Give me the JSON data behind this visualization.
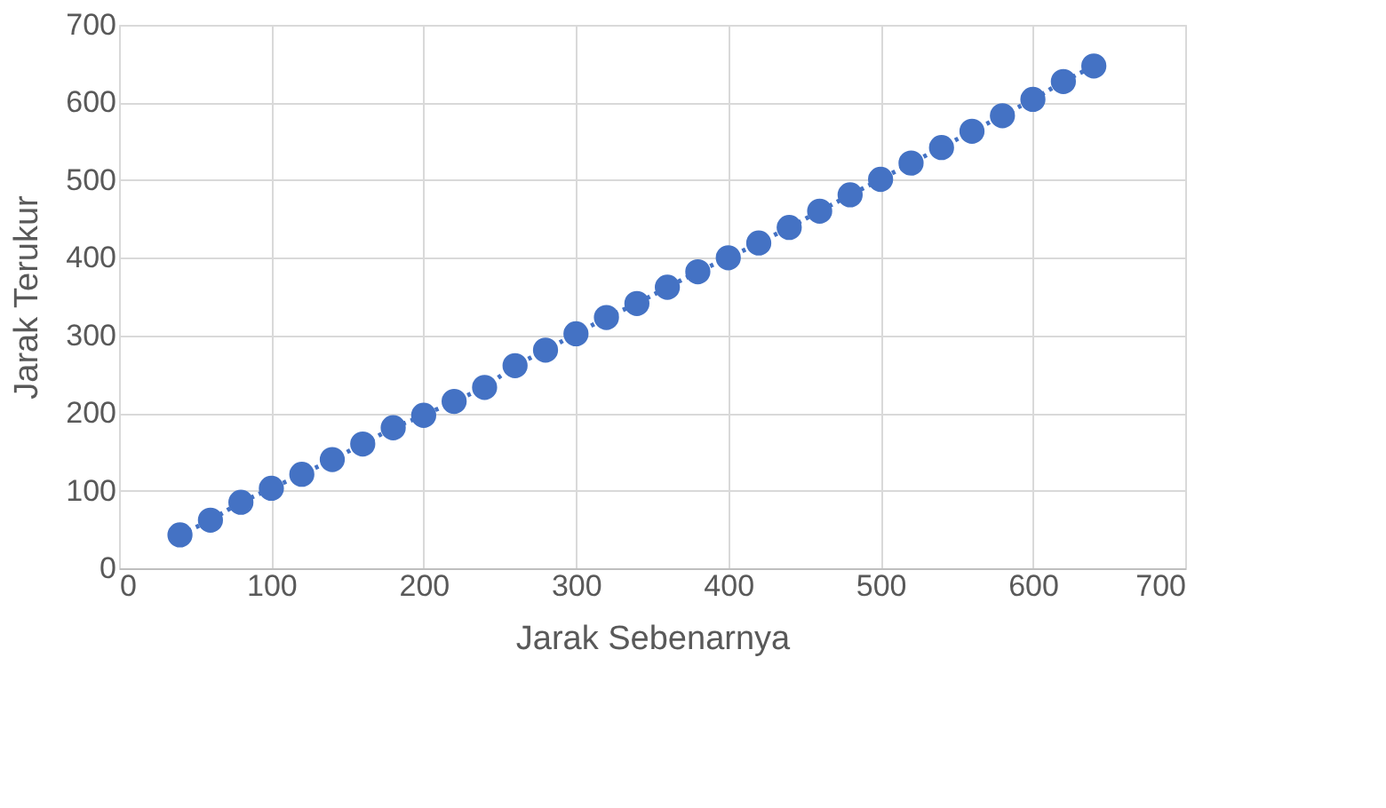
{
  "chart_data": {
    "type": "line",
    "xlabel": "Jarak Sebenarnya",
    "ylabel": "Jarak Terukur",
    "x": [
      40,
      60,
      80,
      100,
      120,
      140,
      160,
      180,
      200,
      220,
      240,
      260,
      280,
      300,
      320,
      340,
      360,
      380,
      400,
      420,
      440,
      460,
      480,
      500,
      520,
      540,
      560,
      580,
      600,
      620,
      640
    ],
    "series": [
      {
        "color": "#4472c4",
        "values": [
          43,
          62,
          85,
          103,
          121,
          140,
          160,
          181,
          197,
          215,
          233,
          261,
          281,
          302,
          323,
          341,
          362,
          382,
          400,
          419,
          439,
          460,
          481,
          501,
          522,
          542,
          563,
          583,
          604,
          627,
          647
        ]
      }
    ],
    "xlim": [
      0,
      700
    ],
    "xticks": [
      0,
      100,
      200,
      300,
      400,
      500,
      600,
      700
    ],
    "ylim": [
      0,
      700
    ],
    "yticks": [
      0,
      100,
      200,
      300,
      400,
      500,
      600,
      700
    ],
    "grid": true,
    "marker": "circle",
    "line_style": "dotted"
  }
}
